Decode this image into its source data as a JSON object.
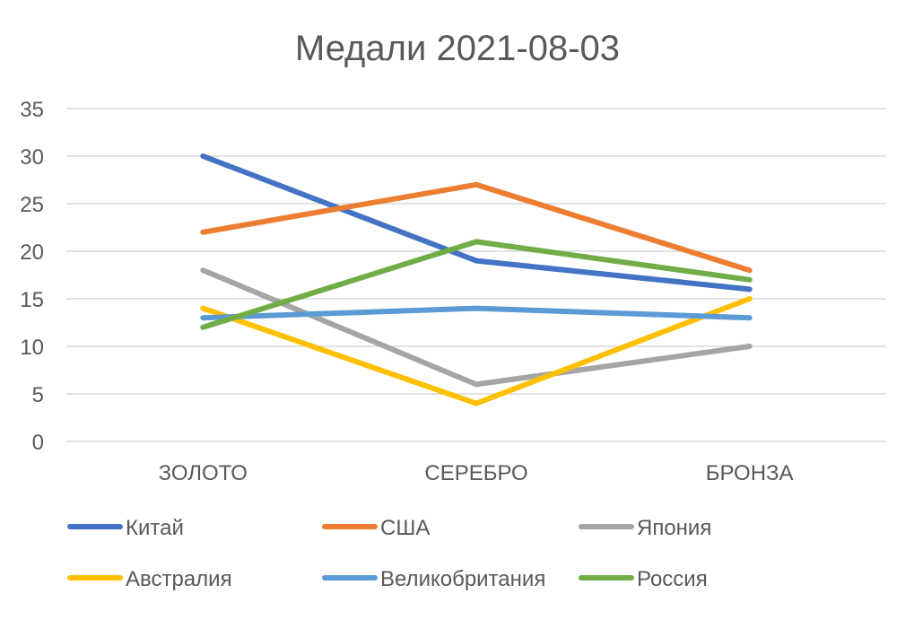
{
  "chart_data": {
    "type": "line",
    "title": "Медали 2021-08-03",
    "xlabel": "",
    "ylabel": "",
    "categories": [
      "ЗОЛОТО",
      "СЕРЕБРО",
      "БРОНЗА"
    ],
    "ylim": [
      0,
      35
    ],
    "yticks": [
      "0",
      "5",
      "10",
      "15",
      "20",
      "25",
      "30",
      "35"
    ],
    "grid": true,
    "legend": "bottom",
    "series": [
      {
        "name": "Китай",
        "color": "#4472c4",
        "values": [
          30,
          19,
          16
        ]
      },
      {
        "name": "США",
        "color": "#ed7d31",
        "values": [
          22,
          27,
          18
        ]
      },
      {
        "name": "Япония",
        "color": "#a5a5a5",
        "values": [
          18,
          6,
          10
        ]
      },
      {
        "name": "Австралия",
        "color": "#ffc000",
        "values": [
          14,
          4,
          15
        ]
      },
      {
        "name": "Великобритания",
        "color": "#5b9bd5",
        "values": [
          13,
          14,
          13
        ]
      },
      {
        "name": "Россия",
        "color": "#70ad47",
        "values": [
          12,
          21,
          17
        ]
      }
    ]
  }
}
